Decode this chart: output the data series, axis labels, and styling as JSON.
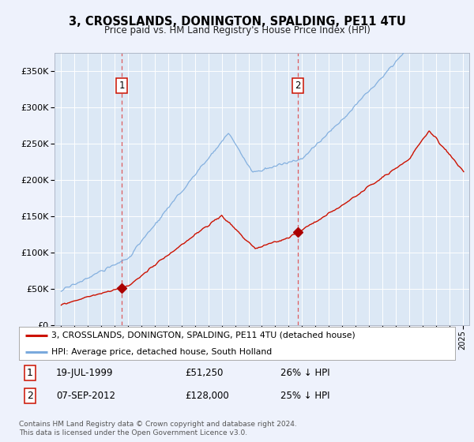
{
  "title": "3, CROSSLANDS, DONINGTON, SPALDING, PE11 4TU",
  "subtitle": "Price paid vs. HM Land Registry's House Price Index (HPI)",
  "bg_color": "#eef2fc",
  "plot_bg_color": "#dce8f5",
  "legend_line1": "3, CROSSLANDS, DONINGTON, SPALDING, PE11 4TU (detached house)",
  "legend_line2": "HPI: Average price, detached house, South Holland",
  "footnote": "Contains HM Land Registry data © Crown copyright and database right 2024.\nThis data is licensed under the Open Government Licence v3.0.",
  "sale1_date": "19-JUL-1999",
  "sale1_price": 51250,
  "sale1_pct": "26% ↓ HPI",
  "sale1_year": 1999.54,
  "sale2_date": "07-SEP-2012",
  "sale2_price": 128000,
  "sale2_pct": "25% ↓ HPI",
  "sale2_year": 2012.68,
  "ylim": [
    0,
    375000
  ],
  "yticks": [
    0,
    50000,
    100000,
    150000,
    200000,
    250000,
    300000,
    350000
  ],
  "xlim_start": 1994.5,
  "xlim_end": 2025.5,
  "hpi_color": "#7aaadd",
  "price_color": "#cc1100",
  "marker_color": "#aa0000",
  "grid_color": "#c8d8ec",
  "vline_color": "#dd4444"
}
